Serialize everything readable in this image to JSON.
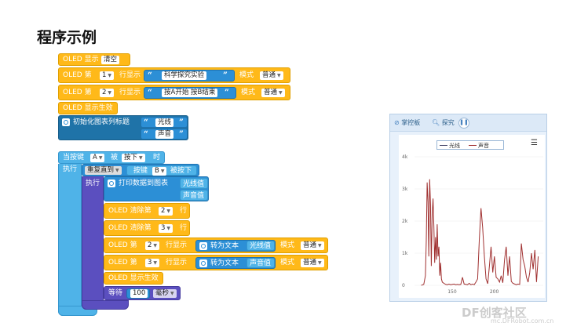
{
  "page_title": "程序示例",
  "watermark": {
    "brand": "DF创客社区",
    "url": "mc.DFRobot.com.cn"
  },
  "blocks": {
    "oled_show": "OLED 显示",
    "clear": "清空",
    "oled_no": "OLED 第",
    "row_show": "行显示",
    "mode": "模式",
    "normal": "普通",
    "row1": "1",
    "row2": "2",
    "row3": "3",
    "text1": "科学探究实验",
    "text2": "按A开始 按B结束",
    "oled_effect": "OLED 显示生效",
    "init_chart": "初始化图表列标题",
    "label_light": "光线",
    "label_sound": "声音",
    "when_btn": "当按键",
    "btn_a": "A",
    "pressed_word": "被",
    "pressed": "按下",
    "when": "时",
    "exec": "执行",
    "repeat_until": "重复直到",
    "btn_b_prefix": "按键",
    "btn_b": "B",
    "pressed_b": "被按下",
    "print_chart": "打印数据到图表",
    "light_val": "光线值",
    "sound_val": "声音值",
    "oled_clear_row": "OLED 清除第",
    "row_suffix": "行",
    "to_text": "转为文本",
    "wait": "等待",
    "wait_val": "100",
    "ms": "毫秒"
  },
  "chart_panel": {
    "tab_board": "掌控板",
    "tab_explore": "探究",
    "pause_icon": "pause-icon",
    "chart_data": {
      "type": "line",
      "series": [
        {
          "name": "光线",
          "color": "#444466",
          "x": [],
          "y": []
        },
        {
          "name": "声音",
          "color": "#a03030",
          "x": [
            113,
            116,
            118,
            119,
            120,
            121,
            122,
            123,
            124,
            125,
            126,
            127,
            128,
            129,
            130,
            131,
            132,
            133,
            134,
            135,
            136,
            137,
            138,
            140,
            142,
            144,
            146,
            148,
            150,
            152,
            154,
            156,
            158,
            160,
            162,
            164,
            166,
            168,
            170,
            172,
            174,
            176,
            178,
            180,
            182,
            184,
            186,
            188,
            190,
            192,
            194,
            196,
            198,
            200,
            202,
            204,
            206,
            208,
            210,
            212,
            214,
            216,
            218,
            220,
            222,
            224,
            226,
            228,
            230,
            232,
            234,
            236,
            238,
            240,
            242,
            244,
            246,
            248,
            250,
            252
          ],
          "y": [
            0,
            30,
            300,
            1400,
            3200,
            2600,
            900,
            3300,
            2500,
            600,
            2200,
            2700,
            1800,
            700,
            1500,
            800,
            1900,
            900,
            1200,
            300,
            700,
            200,
            100,
            60,
            30,
            20,
            40,
            20,
            30,
            40,
            20,
            30,
            20,
            30,
            250,
            40,
            30,
            20,
            60,
            20,
            40,
            20,
            100,
            200,
            1400,
            2400,
            1800,
            900,
            200,
            50,
            600,
            1200,
            400,
            900,
            250,
            200,
            100,
            300,
            80,
            800,
            1200,
            300,
            900,
            120,
            60,
            40,
            20,
            40,
            30,
            1300,
            800,
            600,
            250,
            100,
            400,
            1000,
            500,
            1100,
            100,
            900
          ]
        }
      ],
      "x_ticks": [
        "150",
        "200"
      ],
      "y_ticks": [
        "0",
        "1k",
        "2k",
        "3k",
        "4k"
      ],
      "ylim": [
        0,
        4000
      ],
      "xlim": [
        105,
        258
      ]
    }
  }
}
